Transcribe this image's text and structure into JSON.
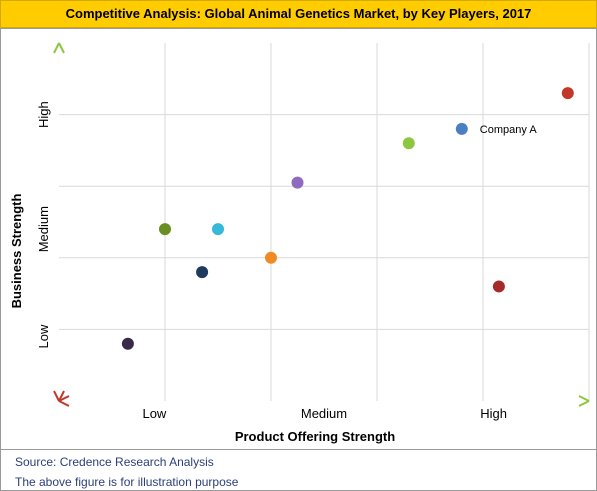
{
  "chart_data": {
    "type": "scatter",
    "title": "Competitive Analysis: Global Animal Genetics Market, by Key Players, 2017",
    "xlabel": "Product Offering Strength",
    "ylabel": "Business Strength",
    "x_tick_labels": [
      "Low",
      "Medium",
      "High"
    ],
    "y_tick_labels": [
      "Low",
      "Medium",
      "High"
    ],
    "xlim": [
      0,
      10
    ],
    "ylim": [
      0,
      10
    ],
    "grid": true,
    "points": [
      {
        "x": 9.6,
        "y": 8.6,
        "color": "#c0392b",
        "label": ""
      },
      {
        "x": 7.6,
        "y": 7.6,
        "color": "#4a7fc1",
        "label": "Company A"
      },
      {
        "x": 6.6,
        "y": 7.2,
        "color": "#8dc63f",
        "label": ""
      },
      {
        "x": 4.5,
        "y": 6.1,
        "color": "#8e6bbf",
        "label": ""
      },
      {
        "x": 2.0,
        "y": 4.8,
        "color": "#6b8e23",
        "label": ""
      },
      {
        "x": 3.0,
        "y": 4.8,
        "color": "#36b8d8",
        "label": ""
      },
      {
        "x": 4.0,
        "y": 4.0,
        "color": "#f08a24",
        "label": ""
      },
      {
        "x": 2.7,
        "y": 3.6,
        "color": "#1f3a5f",
        "label": ""
      },
      {
        "x": 8.3,
        "y": 3.2,
        "color": "#a52a2a",
        "label": ""
      },
      {
        "x": 1.3,
        "y": 1.6,
        "color": "#3a2a4a",
        "label": ""
      }
    ]
  },
  "footer": {
    "source": "Source: Credence Research Analysis",
    "note": "The above figure is for illustration purpose"
  }
}
